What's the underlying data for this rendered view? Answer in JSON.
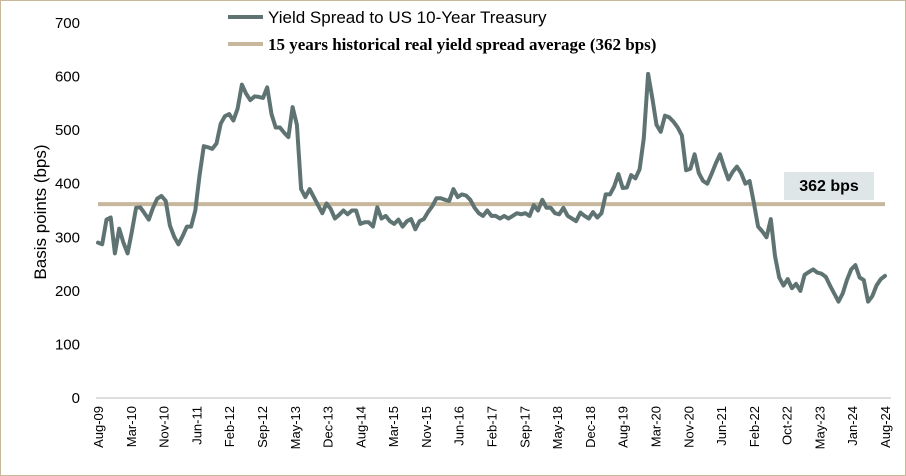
{
  "chart_data": {
    "type": "line",
    "title": "",
    "xlabel": "",
    "ylabel": "Basis points (bps)",
    "ylim": [
      0,
      700
    ],
    "yticks": [
      0,
      100,
      200,
      300,
      400,
      500,
      600,
      700
    ],
    "x_tick_labels": [
      "Aug-09",
      "Mar-10",
      "Nov-10",
      "Jun-11",
      "Feb-12",
      "Sep-12",
      "May-13",
      "Dec-13",
      "Aug-14",
      "Mar-15",
      "Nov-15",
      "Jun-16",
      "Feb-17",
      "Sep-17",
      "May-18",
      "Dec-18",
      "Aug-19",
      "Mar-20",
      "Nov-20",
      "Jun-21",
      "Feb-22",
      "Oct-22",
      "May-23",
      "Jan-24",
      "Aug-24"
    ],
    "grid": false,
    "legend_position": "top",
    "series": [
      {
        "name": "Yield Spread to US 10-Year Treasury",
        "color": "#5f7373",
        "style": "line",
        "start": "Aug-09",
        "frequency": "monthly",
        "values": [
          290,
          287,
          333,
          337,
          270,
          316,
          290,
          270,
          310,
          355,
          356,
          345,
          333,
          355,
          372,
          377,
          368,
          322,
          301,
          287,
          302,
          320,
          320,
          350,
          415,
          470,
          468,
          465,
          475,
          512,
          526,
          530,
          518,
          540,
          585,
          568,
          556,
          563,
          562,
          560,
          580,
          530,
          505,
          505,
          495,
          487,
          543,
          510,
          390,
          375,
          390,
          375,
          360,
          345,
          363,
          353,
          335,
          342,
          350,
          343,
          350,
          350,
          325,
          328,
          328,
          320,
          356,
          335,
          340,
          330,
          325,
          333,
          320,
          330,
          334,
          315,
          330,
          334,
          347,
          358,
          373,
          373,
          370,
          368,
          390,
          375,
          380,
          378,
          370,
          355,
          345,
          340,
          350,
          340,
          340,
          335,
          340,
          335,
          340,
          345,
          343,
          345,
          340,
          360,
          350,
          370,
          355,
          355,
          345,
          343,
          355,
          340,
          335,
          330,
          346,
          340,
          335,
          347,
          337,
          345,
          380,
          380,
          395,
          418,
          392,
          393,
          416,
          410,
          427,
          485,
          605,
          560,
          510,
          497,
          527,
          524,
          516,
          505,
          490,
          425,
          428,
          455,
          420,
          405,
          400,
          418,
          438,
          455,
          430,
          408,
          422,
          432,
          420,
          400,
          405,
          365,
          320,
          311,
          300,
          334,
          265,
          225,
          210,
          222,
          205,
          213,
          200,
          230,
          235,
          240,
          234,
          232,
          226,
          210,
          195,
          180,
          195,
          220,
          240,
          248,
          225,
          220,
          180,
          190,
          210,
          222,
          228
        ]
      },
      {
        "name": "15 years historical real yield spread average (362 bps)",
        "color": "#c7b89d",
        "style": "constant",
        "value": 362
      }
    ],
    "annotations": [
      {
        "text": "362 bps",
        "value": 362
      }
    ]
  }
}
